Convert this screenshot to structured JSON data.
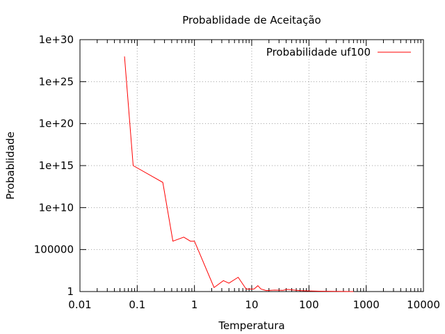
{
  "chart_data": {
    "type": "line",
    "title": "Probablidade de Aceitação",
    "xlabel": "Temperatura",
    "ylabel": "Probablidade",
    "x_scale": "log",
    "y_scale": "log",
    "xlim": [
      0.01,
      10000
    ],
    "ylim": [
      1,
      1e+30
    ],
    "x_ticks": [
      {
        "value": 0.01,
        "label": "0.01"
      },
      {
        "value": 0.1,
        "label": "0.1"
      },
      {
        "value": 1,
        "label": "1"
      },
      {
        "value": 10,
        "label": "10"
      },
      {
        "value": 100,
        "label": "100"
      },
      {
        "value": 1000,
        "label": "1000"
      },
      {
        "value": 10000,
        "label": "10000"
      }
    ],
    "y_ticks": [
      {
        "value": 1,
        "label": "1"
      },
      {
        "value": 100000,
        "label": "100000"
      },
      {
        "value": 10000000000.0,
        "label": "1e+10"
      },
      {
        "value": 1000000000000000.0,
        "label": "1e+15"
      },
      {
        "value": 1e+20,
        "label": "1e+20"
      },
      {
        "value": 1e+25,
        "label": "1e+25"
      },
      {
        "value": 1e+30,
        "label": "1e+30"
      }
    ],
    "grid": true,
    "legend_position": "top-right",
    "series": [
      {
        "name": "Probabilidade uf100",
        "color": "#ff0000",
        "x": [
          0.06,
          0.085,
          0.28,
          0.42,
          0.65,
          0.85,
          1.0,
          2.2,
          3.2,
          4.0,
          5.8,
          8.0,
          9.5,
          11.0,
          12.8,
          14.5,
          18.0,
          25.0,
          35.0,
          42.0,
          55.0,
          70.0,
          90.0,
          150.0,
          300.0,
          600.0
        ],
        "y": [
          1e+28,
          1000000000000000.0,
          10000000000000.0,
          1000000.0,
          3000000.0,
          1000000.0,
          1000000.0,
          3,
          20,
          10,
          50,
          2,
          2,
          2,
          5,
          2,
          1.3,
          1.5,
          1.4,
          1.8,
          1.5,
          1.3,
          1.2,
          1.1,
          1.05,
          1.0
        ]
      }
    ]
  }
}
